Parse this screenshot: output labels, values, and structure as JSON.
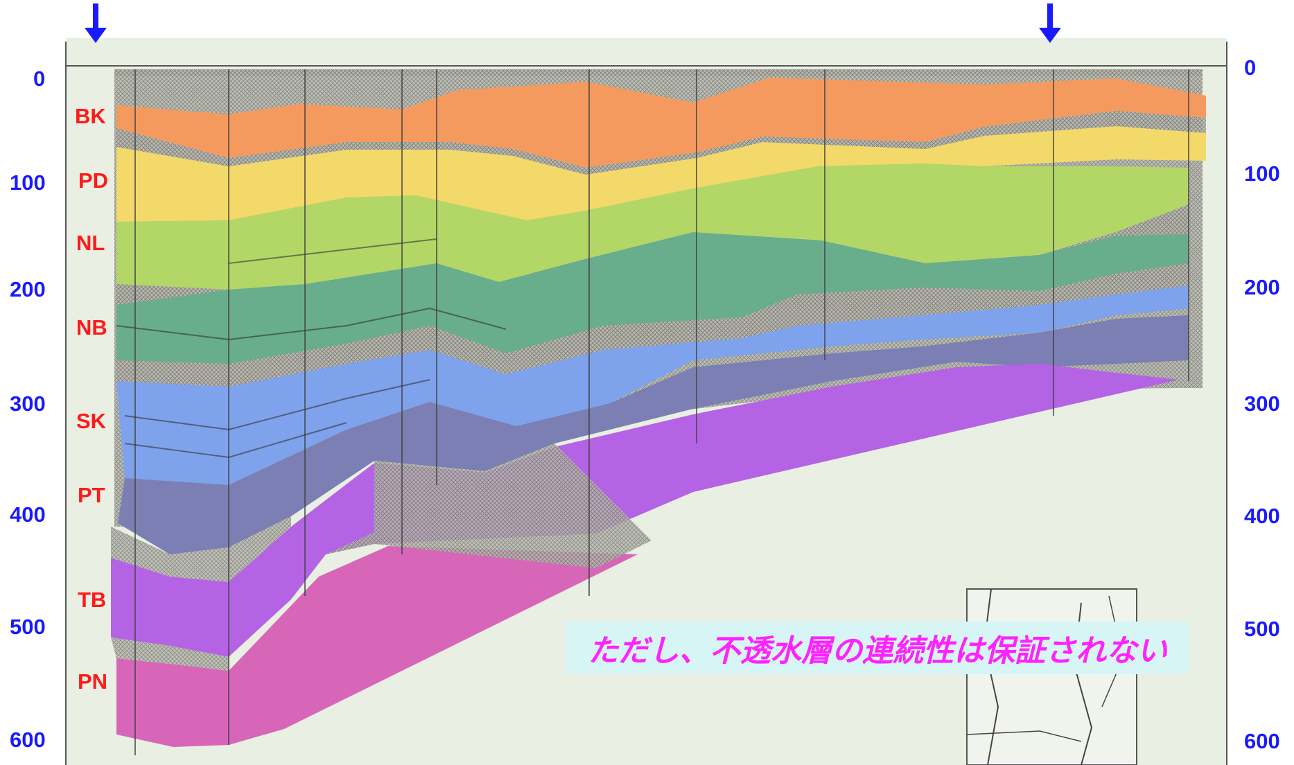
{
  "depth_axis": {
    "left_ticks": [
      "0",
      "100",
      "200",
      "300",
      "400",
      "500",
      "600"
    ],
    "right_ticks": [
      "0",
      "100",
      "200",
      "300",
      "400",
      "500",
      "600"
    ]
  },
  "units": [
    {
      "label": "BK",
      "color": "#f59a5e"
    },
    {
      "label": "PD",
      "color": "#f3d96a"
    },
    {
      "label": "NL",
      "color": "#b3d767"
    },
    {
      "label": "NB",
      "color": "#68ad8c"
    },
    {
      "label": "SK",
      "color": "#7ea2ec"
    },
    {
      "label": "PT",
      "color": "#7b7fb3"
    },
    {
      "label": "TB",
      "color": "#b463e5"
    },
    {
      "label": "PN",
      "color": "#d766b8"
    }
  ],
  "arrows": {
    "color": "#1a1aff",
    "count": 2
  },
  "note": {
    "text": "ただし、不透水層の連続性は保証されない",
    "color": "#ff22ff",
    "background": "#d8f5f5"
  },
  "colors": {
    "paper": "#e9efe2",
    "clay": "#a8a8a0",
    "frame": "#555555"
  }
}
